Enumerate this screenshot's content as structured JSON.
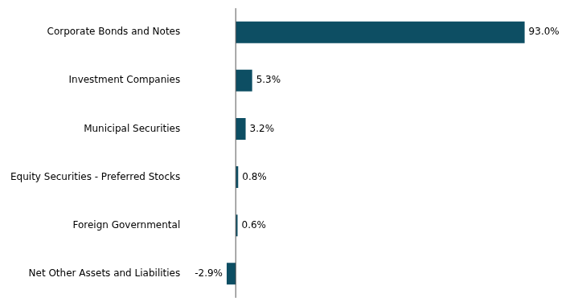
{
  "chart_data": {
    "type": "bar",
    "orientation": "horizontal",
    "categories": [
      "Net Other Assets and Liabilities",
      "Foreign Governmental",
      "Equity Securities - Preferred Stocks",
      "Municipal Securities",
      "Investment Companies",
      "Corporate Bonds and Notes"
    ],
    "values": [
      -2.9,
      0.6,
      0.8,
      3.2,
      5.3,
      93.0
    ],
    "value_labels": [
      "-2.9%",
      "0.6%",
      "0.8%",
      "3.2%",
      "5.3%",
      "93.0%"
    ],
    "data_labels": true,
    "color": "#0d4e63",
    "xlim": [
      -15,
      105
    ],
    "grid": false,
    "tick_labels": "y"
  }
}
